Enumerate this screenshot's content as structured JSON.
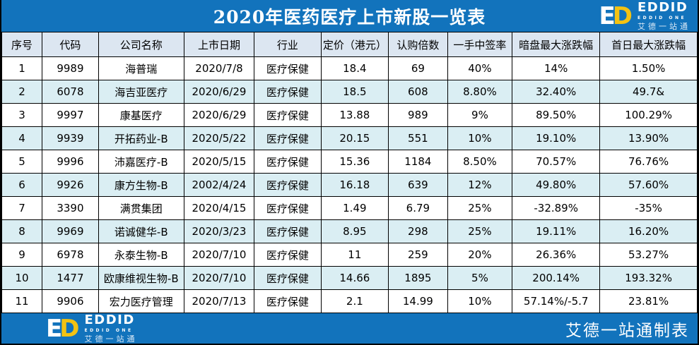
{
  "title": "2020年医药医疗上市新股一览表",
  "brand": {
    "mark_e": "E",
    "mark_d": "D",
    "name": "EDDID",
    "subtitle": "EDDID ONE",
    "cn_name": "艾德一站通",
    "footer_credit": "艾德一站通制表",
    "colors": {
      "bar_blue": "#1273bc",
      "logo_yellow": "#f3c212",
      "header_bg": "#dce6f1",
      "alt_row_bg": "#daeef3"
    }
  },
  "chart_data": {
    "type": "table",
    "title": "2020年医药医疗上市新股一览表",
    "columns": [
      "序号",
      "代码",
      "公司名称",
      "上市日期",
      "行业",
      "定价（港元）",
      "认购倍数",
      "一手中签率",
      "暗盘最大涨跌幅",
      "首日最大涨跌幅"
    ],
    "rows": [
      [
        "1",
        "9989",
        "海普瑞",
        "2020/7/8",
        "医疗保健",
        "18.4",
        "69",
        "40%",
        "14%",
        "1.50%"
      ],
      [
        "2",
        "6078",
        "海吉亚医疗",
        "2020/6/29",
        "医疗保健",
        "18.5",
        "608",
        "8.80%",
        "32.40%",
        "49.7&"
      ],
      [
        "3",
        "9997",
        "康基医疗",
        "2020/6/29",
        "医疗保健",
        "13.88",
        "989",
        "9%",
        "89.50%",
        "100.29%"
      ],
      [
        "4",
        "9939",
        "开拓药业-B",
        "2020/5/22",
        "医疗保健",
        "20.15",
        "551",
        "10%",
        "19.10%",
        "13.90%"
      ],
      [
        "5",
        "9996",
        "沛嘉医疗-B",
        "2020/5/15",
        "医疗保健",
        "15.36",
        "1184",
        "8.50%",
        "70.57%",
        "76.76%"
      ],
      [
        "6",
        "9926",
        "康方生物-B",
        "2002/4/24",
        "医疗保健",
        "16.18",
        "639",
        "12%",
        "49.80%",
        "57.60%"
      ],
      [
        "7",
        "3390",
        "满贯集团",
        "2020/4/15",
        "医疗保健",
        "1.49",
        "6.79",
        "25%",
        "-32.89%",
        "-35%"
      ],
      [
        "8",
        "9969",
        "诺诚健华-B",
        "2020/3/23",
        "医疗保健",
        "8.95",
        "298",
        "25%",
        "19.11%",
        "16.20%"
      ],
      [
        "9",
        "6978",
        "永泰生物-B",
        "2020/7/10",
        "医疗保健",
        "11",
        "259",
        "20%",
        "26.36%",
        "53.27%"
      ],
      [
        "10",
        "1477",
        "欧康维视生物-B",
        "2020/7/10",
        "医疗保健",
        "14.66",
        "1895",
        "5%",
        "200.14%",
        "193.32%"
      ],
      [
        "11",
        "9906",
        "宏力医疗管理",
        "2020/7/13",
        "医疗保健",
        "2.1",
        "14.99",
        "10%",
        "57.14%/-5.7",
        "23.81%"
      ]
    ]
  }
}
